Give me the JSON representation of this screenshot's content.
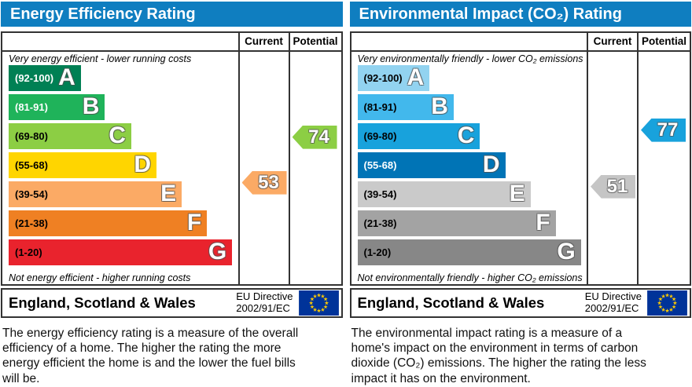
{
  "colors": {
    "header_bar": "#0f7ec0",
    "box_border": "#333333",
    "eu_flag_blue": "#003399",
    "eu_star_yellow": "#ffcc00"
  },
  "chart_data": [
    {
      "type": "bar",
      "title": "Energy Efficiency Rating",
      "column_headers": [
        "Current",
        "Potential"
      ],
      "top_note": "Very energy efficient - lower running costs",
      "bottom_note": "Not energy efficient - higher running costs",
      "categories": [
        "A",
        "B",
        "C",
        "D",
        "E",
        "F",
        "G"
      ],
      "bands": [
        {
          "letter": "A",
          "label": "(92-100)",
          "min": 92,
          "max": 100,
          "color": "#008054",
          "bar_pct": 31.5,
          "label_color": "#ffffff"
        },
        {
          "letter": "B",
          "label": "(81-91)",
          "min": 81,
          "max": 91,
          "color": "#1fb35a",
          "bar_pct": 42,
          "label_color": "#ffffff"
        },
        {
          "letter": "C",
          "label": "(69-80)",
          "min": 69,
          "max": 80,
          "color": "#8cce44",
          "bar_pct": 53.5,
          "label_color": "#000000"
        },
        {
          "letter": "D",
          "label": "(55-68)",
          "min": 55,
          "max": 68,
          "color": "#ffd500",
          "bar_pct": 64.5,
          "label_color": "#000000"
        },
        {
          "letter": "E",
          "label": "(39-54)",
          "min": 39,
          "max": 54,
          "color": "#fbaa65",
          "bar_pct": 75.5,
          "label_color": "#000000"
        },
        {
          "letter": "F",
          "label": "(21-38)",
          "min": 21,
          "max": 38,
          "color": "#ef8023",
          "bar_pct": 86.5,
          "label_color": "#000000"
        },
        {
          "letter": "G",
          "label": "(1-20)",
          "min": 1,
          "max": 20,
          "color": "#e9232d",
          "bar_pct": 97.5,
          "label_color": "#000000"
        }
      ],
      "current": {
        "value": 53,
        "band": "E",
        "color": "#fbaa65"
      },
      "potential": {
        "value": 74,
        "band": "C",
        "color": "#8cce44"
      },
      "footer": {
        "region": "England, Scotland & Wales",
        "directive": [
          "EU Directive",
          "2002/91/EC"
        ]
      },
      "description": "The energy efficiency rating is a measure of the overall efficiency of a home. The higher the rating the more energy efficient the home is and the lower the fuel bills will be."
    },
    {
      "type": "bar",
      "title": "Environmental Impact (CO₂) Rating",
      "column_headers": [
        "Current",
        "Potential"
      ],
      "top_note": "Very environmentally friendly - lower CO₂ emissions",
      "bottom_note": "Not environmentally friendly - higher CO₂ emissions",
      "categories": [
        "A",
        "B",
        "C",
        "D",
        "E",
        "F",
        "G"
      ],
      "bands": [
        {
          "letter": "A",
          "label": "(92-100)",
          "min": 92,
          "max": 100,
          "color": "#92d3f0",
          "bar_pct": 31.5,
          "label_color": "#000000"
        },
        {
          "letter": "B",
          "label": "(81-91)",
          "min": 81,
          "max": 91,
          "color": "#42b8ec",
          "bar_pct": 42,
          "label_color": "#000000"
        },
        {
          "letter": "C",
          "label": "(69-80)",
          "min": 69,
          "max": 80,
          "color": "#18a2dc",
          "bar_pct": 53.5,
          "label_color": "#000000"
        },
        {
          "letter": "D",
          "label": "(55-68)",
          "min": 55,
          "max": 68,
          "color": "#0074b6",
          "bar_pct": 64.5,
          "label_color": "#ffffff"
        },
        {
          "letter": "E",
          "label": "(39-54)",
          "min": 39,
          "max": 54,
          "color": "#cacaca",
          "bar_pct": 75.5,
          "label_color": "#000000"
        },
        {
          "letter": "F",
          "label": "(21-38)",
          "min": 21,
          "max": 38,
          "color": "#a3a3a3",
          "bar_pct": 86.5,
          "label_color": "#000000"
        },
        {
          "letter": "G",
          "label": "(1-20)",
          "min": 1,
          "max": 20,
          "color": "#878787",
          "bar_pct": 97.5,
          "label_color": "#000000"
        }
      ],
      "current": {
        "value": 51,
        "band": "E",
        "color": "#c5c5c5"
      },
      "potential": {
        "value": 77,
        "band": "C",
        "color": "#18a2dc"
      },
      "footer": {
        "region": "England, Scotland & Wales",
        "directive": [
          "EU Directive",
          "2002/91/EC"
        ]
      },
      "description": "The environmental impact rating is a measure of a home's impact on the environment in terms of carbon dioxide (CO₂) emissions. The higher the rating the less impact it has on the environment."
    }
  ]
}
